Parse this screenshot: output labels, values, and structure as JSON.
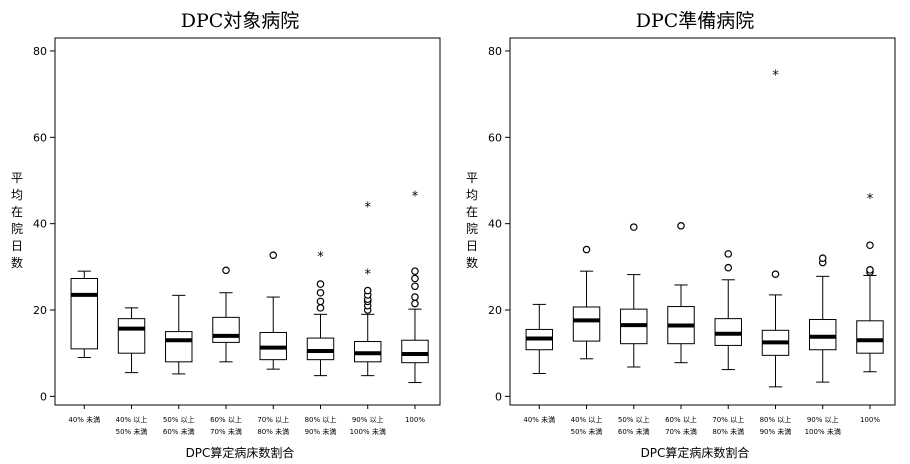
{
  "chart_data": [
    {
      "type": "box",
      "title": "DPC対象病院",
      "xlabel": "DPC算定病床数割合",
      "ylabel": "平均在院日数",
      "ylim": [
        -2,
        83
      ],
      "yticks": [
        0,
        20,
        40,
        60,
        80
      ],
      "categories": [
        [
          "40% 未満",
          ""
        ],
        [
          "40% 以上",
          "50% 未満"
        ],
        [
          "50% 以上",
          "60% 未満"
        ],
        [
          "60% 以上",
          "70% 未満"
        ],
        [
          "70% 以上",
          "80% 未満"
        ],
        [
          "80% 以上",
          "90% 未満"
        ],
        [
          "90% 以上",
          "100% 未満"
        ],
        [
          "100%",
          ""
        ]
      ],
      "boxes": [
        {
          "min": 9,
          "q1": 11,
          "median": 23.5,
          "q3": 27.3,
          "max": 29,
          "outliers": [],
          "extremes": []
        },
        {
          "min": 5.5,
          "q1": 10,
          "median": 15.7,
          "q3": 18,
          "max": 20.5,
          "outliers": [],
          "extremes": []
        },
        {
          "min": 5.2,
          "q1": 8,
          "median": 13,
          "q3": 15,
          "max": 23.4,
          "outliers": [],
          "extremes": []
        },
        {
          "min": 8,
          "q1": 12.5,
          "median": 14,
          "q3": 18.3,
          "max": 24,
          "outliers": [
            29.2
          ],
          "extremes": []
        },
        {
          "min": 6.3,
          "q1": 8.5,
          "median": 11.3,
          "q3": 14.8,
          "max": 23,
          "outliers": [
            32.7
          ],
          "extremes": []
        },
        {
          "min": 4.8,
          "q1": 8.5,
          "median": 10.5,
          "q3": 13.5,
          "max": 19,
          "outliers": [
            20.5,
            22,
            24,
            26
          ],
          "extremes": [
            32.5
          ]
        },
        {
          "min": 4.8,
          "q1": 8,
          "median": 10,
          "q3": 12.7,
          "max": 19,
          "outliers": [
            20,
            21,
            22,
            22.5,
            23.5,
            24.5
          ],
          "extremes": [
            28.5,
            44
          ]
        },
        {
          "min": 3.2,
          "q1": 7.8,
          "median": 9.8,
          "q3": 13,
          "max": 20.2,
          "outliers": [
            21.5,
            23,
            25.5,
            27.3,
            29
          ],
          "extremes": [
            46.5
          ]
        }
      ]
    },
    {
      "type": "box",
      "title": "DPC準備病院",
      "xlabel": "DPC算定病床数割合",
      "ylabel": "平均在院日数",
      "ylim": [
        -2,
        83
      ],
      "yticks": [
        0,
        20,
        40,
        60,
        80
      ],
      "categories": [
        [
          "40% 未満",
          ""
        ],
        [
          "40% 以上",
          "50% 未満"
        ],
        [
          "50% 以上",
          "60% 未満"
        ],
        [
          "60% 以上",
          "70% 未満"
        ],
        [
          "70% 以上",
          "80% 未満"
        ],
        [
          "80% 以上",
          "90% 未満"
        ],
        [
          "90% 以上",
          "100% 未満"
        ],
        [
          "100%",
          ""
        ]
      ],
      "boxes": [
        {
          "min": 5.3,
          "q1": 10.8,
          "median": 13.4,
          "q3": 15.5,
          "max": 21.3,
          "outliers": [],
          "extremes": []
        },
        {
          "min": 8.7,
          "q1": 12.8,
          "median": 17.6,
          "q3": 20.7,
          "max": 29,
          "outliers": [
            34
          ],
          "extremes": []
        },
        {
          "min": 6.8,
          "q1": 12.2,
          "median": 16.5,
          "q3": 20.2,
          "max": 28.2,
          "outliers": [
            39.2
          ],
          "extremes": []
        },
        {
          "min": 7.8,
          "q1": 12.2,
          "median": 16.4,
          "q3": 20.8,
          "max": 25.8,
          "outliers": [
            39.5
          ],
          "extremes": []
        },
        {
          "min": 6.2,
          "q1": 11.8,
          "median": 14.5,
          "q3": 18,
          "max": 27,
          "outliers": [
            29.8,
            33
          ],
          "extremes": []
        },
        {
          "min": 2.2,
          "q1": 9.5,
          "median": 12.5,
          "q3": 15.3,
          "max": 23.5,
          "outliers": [
            28.3
          ],
          "extremes": [
            74.5
          ]
        },
        {
          "min": 3.3,
          "q1": 10.8,
          "median": 13.8,
          "q3": 17.8,
          "max": 27.8,
          "outliers": [
            31,
            32
          ],
          "extremes": []
        },
        {
          "min": 5.7,
          "q1": 10,
          "median": 13,
          "q3": 17.5,
          "max": 28,
          "outliers": [
            28.8,
            29.3,
            35
          ],
          "extremes": [
            46
          ]
        }
      ]
    }
  ]
}
